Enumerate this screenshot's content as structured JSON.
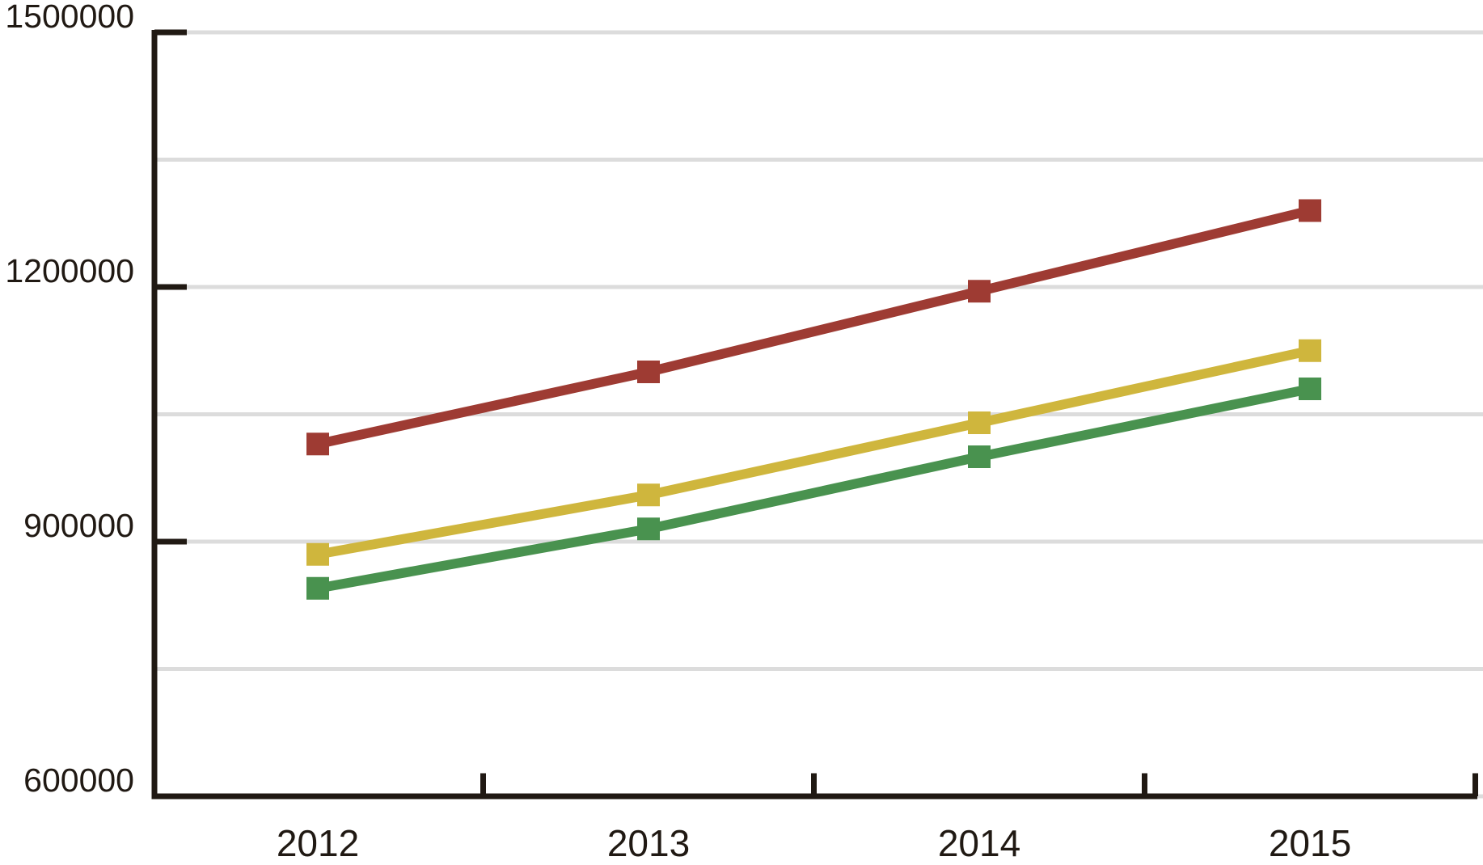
{
  "chart_data": {
    "type": "line",
    "title": "",
    "xlabel": "",
    "ylabel": "",
    "categories": [
      "2012",
      "2013",
      "2014",
      "2015"
    ],
    "series": [
      {
        "name": "red",
        "color": "#9E3B33",
        "values": [
          1015000,
          1100000,
          1195000,
          1290000
        ]
      },
      {
        "name": "yellow",
        "color": "#CFB63D",
        "values": [
          885000,
          955000,
          1040000,
          1125000
        ]
      },
      {
        "name": "green",
        "color": "#49924F",
        "values": [
          845000,
          915000,
          1000000,
          1080000
        ]
      }
    ],
    "marker": "square",
    "ylim": [
      600000,
      1500000
    ],
    "gridline_step": 150000,
    "ytick_label_step": 300000,
    "ytick_labels": [
      "600000",
      "900000",
      "1200000",
      "1500000"
    ],
    "grid": "horizontal-only",
    "legend": "none",
    "colors": {
      "axis": "#201913",
      "text": "#201913",
      "gridline": "#DCDCDC",
      "background": "#FFFFFF"
    }
  }
}
